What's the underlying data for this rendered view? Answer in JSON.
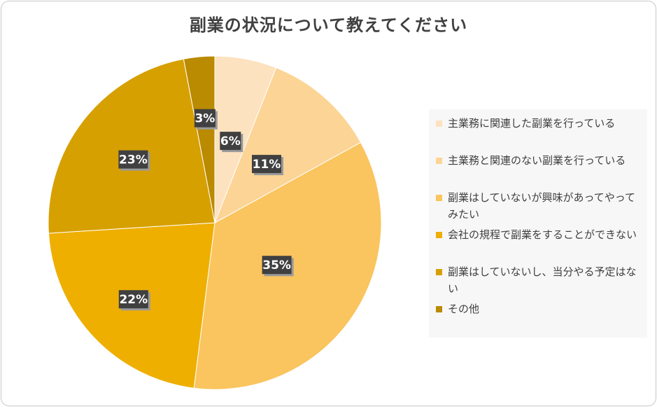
{
  "chart_data": {
    "type": "pie",
    "title": "副業の状況について教えてください",
    "legend_position": "right",
    "slices": [
      {
        "name": "主業務に関連した副業を行っている",
        "value": 6,
        "label": "6%",
        "color": "#fde2bf"
      },
      {
        "name": "主業務と関連のない副業を行っている",
        "value": 11,
        "label": "11%",
        "color": "#fcd495"
      },
      {
        "name": "副業はしていないが興味があってやってみたい",
        "value": 35,
        "label": "35%",
        "color": "#fac45e"
      },
      {
        "name": "会社の規程で副業をすることができない",
        "value": 22,
        "label": "22%",
        "color": "#eeaf00"
      },
      {
        "name": "副業はしていないし、当分やる予定はない",
        "value": 23,
        "label": "23%",
        "color": "#d6a000"
      },
      {
        "name": "その他",
        "value": 3,
        "label": "3%",
        "color": "#ba8a00"
      }
    ]
  }
}
